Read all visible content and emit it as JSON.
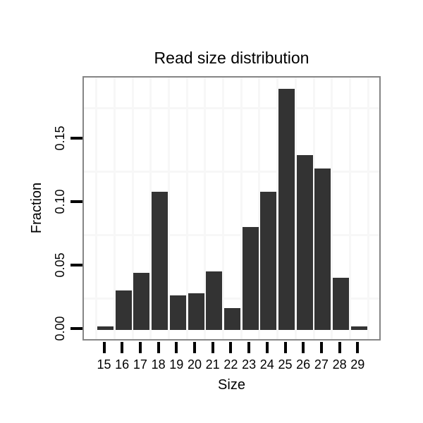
{
  "chart_data": {
    "type": "bar",
    "title": "Read size distribution",
    "xlabel": "Size",
    "ylabel": "Fraction",
    "categories": [
      "15",
      "16",
      "17",
      "18",
      "19",
      "20",
      "21",
      "22",
      "23",
      "24",
      "25",
      "26",
      "27",
      "28",
      "29"
    ],
    "values": [
      0.003,
      0.031,
      0.045,
      0.109,
      0.027,
      0.029,
      0.046,
      0.017,
      0.081,
      0.109,
      0.19,
      0.138,
      0.127,
      0.041,
      0.003
    ],
    "y_tick_labels": [
      "0.00",
      "0.05",
      "0.10",
      "0.15"
    ],
    "y_tick_values": [
      0.0,
      0.05,
      0.1,
      0.15
    ],
    "ylim": [
      -0.009,
      0.198
    ],
    "grid": {
      "horizontal_minor_values": [
        0.025,
        0.075,
        0.125,
        0.175
      ],
      "vertical_lines_between_categories": true,
      "gridline_color": "#f7f7f7"
    },
    "legend": "none",
    "bar_color": "#333333",
    "panel_border_color": "#858585",
    "tick_color": "#000000",
    "text_color": "#000000",
    "background_color": "#ffffff"
  }
}
